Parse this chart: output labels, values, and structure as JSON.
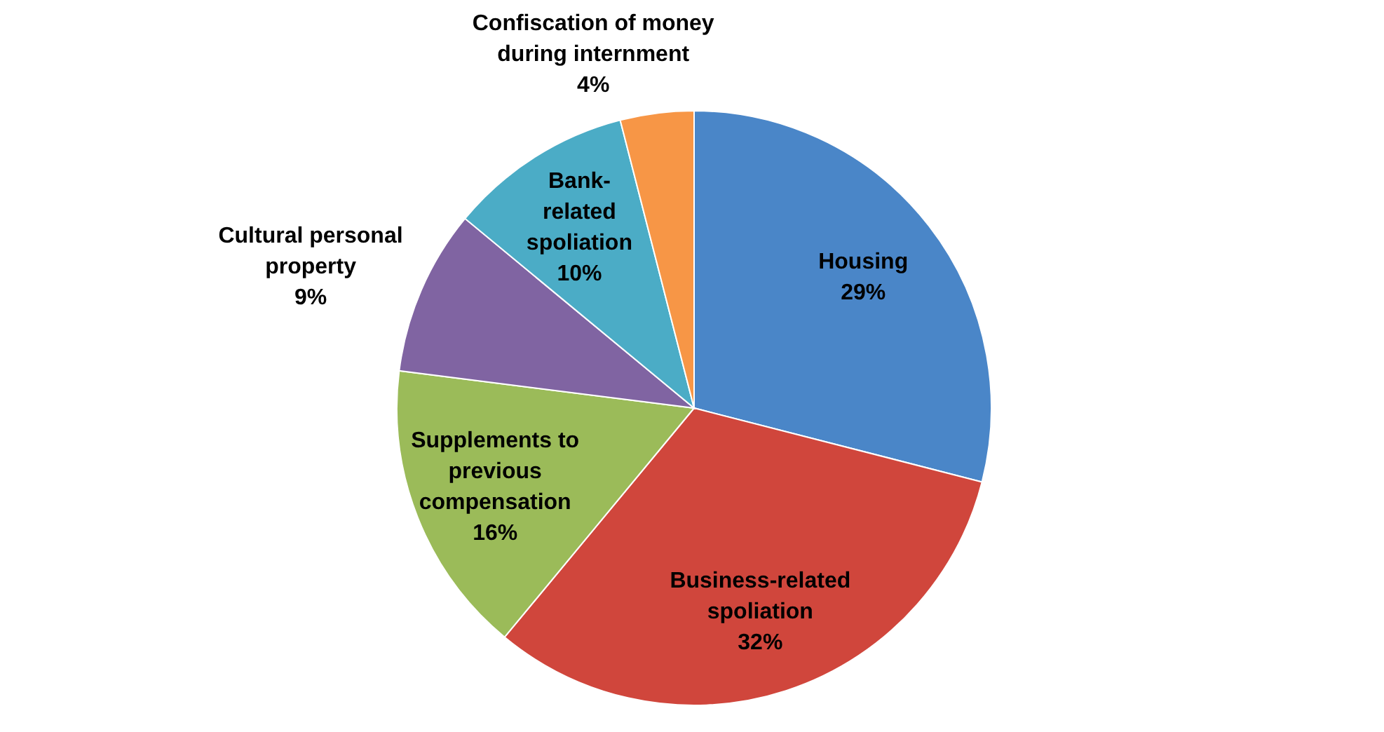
{
  "chart_data": {
    "type": "pie",
    "categories": [
      "Housing",
      "Business-related spoliation",
      "Supplements to previous compensation",
      "Cultural personal property",
      "Bank-related spoliation",
      "Confiscation of money during internment"
    ],
    "values": [
      29,
      32,
      16,
      9,
      10,
      4
    ],
    "colors": [
      "#4a86c8",
      "#d0463c",
      "#9bbb59",
      "#8064a2",
      "#4bacc6",
      "#f79646"
    ],
    "value_labels": [
      "29%",
      "32%",
      "16%",
      "9%",
      "10%",
      "4%"
    ]
  }
}
